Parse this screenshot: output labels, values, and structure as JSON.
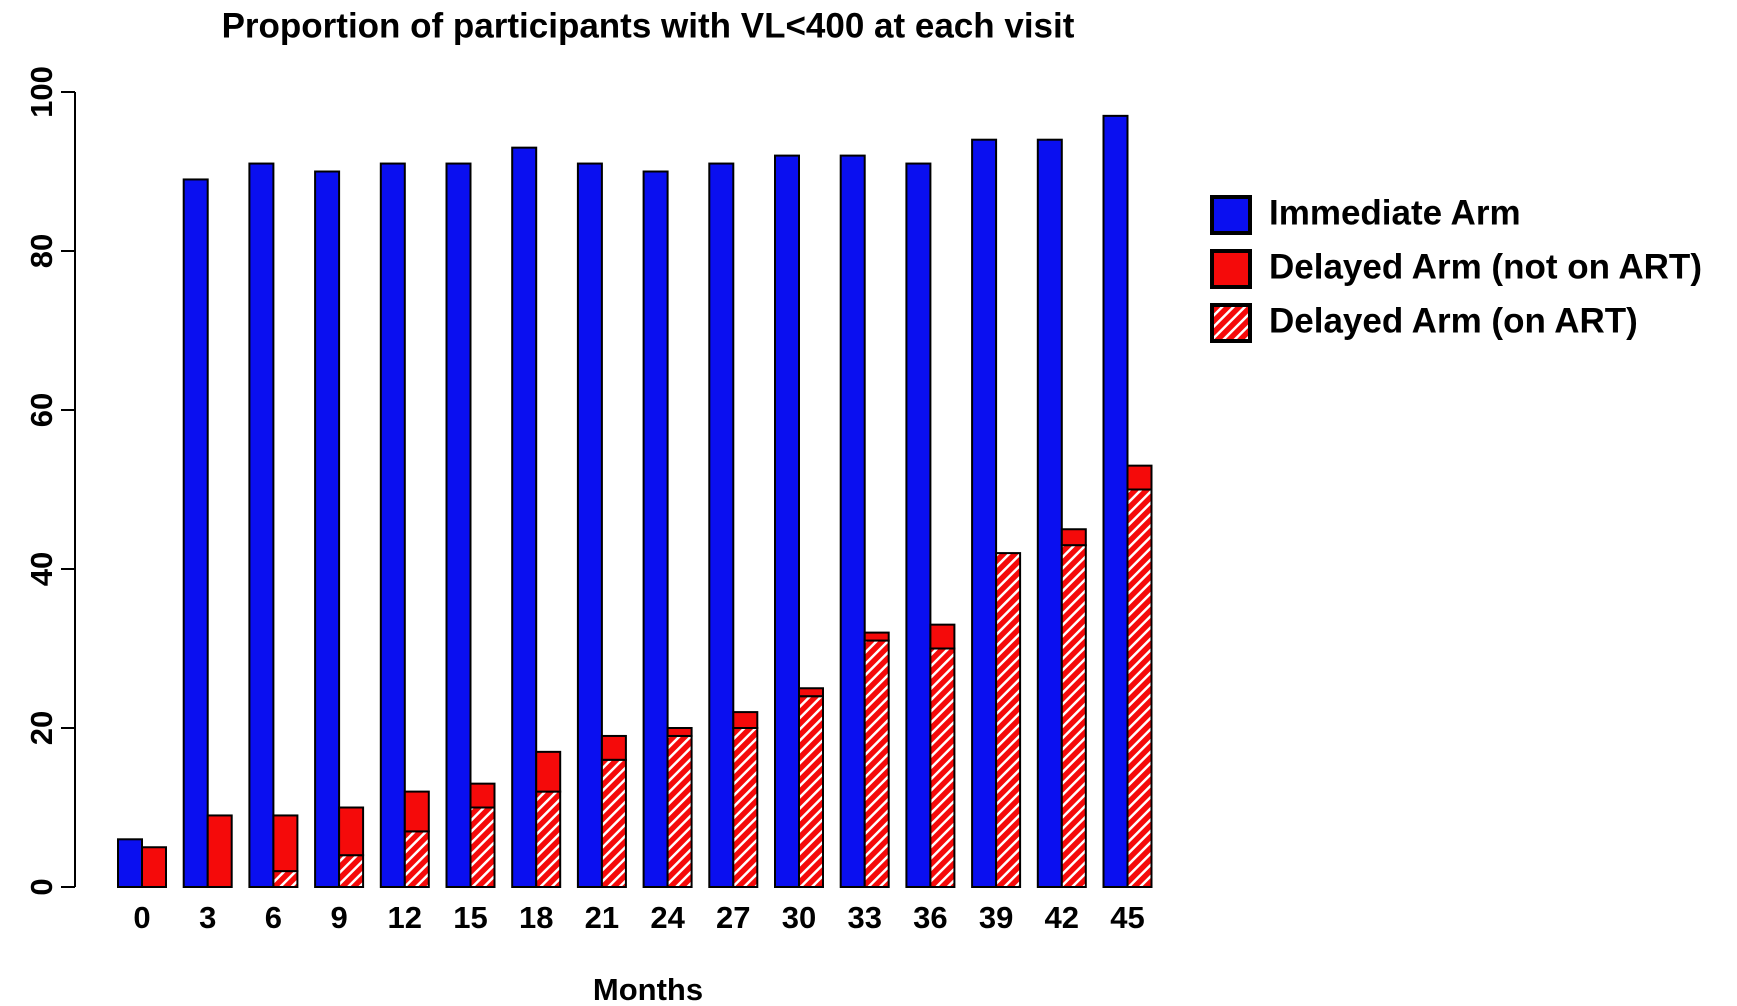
{
  "chart_data": {
    "type": "bar",
    "title": "Proportion of participants with VL<400 at each visit",
    "x_label": "Months",
    "categories": [
      "0",
      "3",
      "6",
      "9",
      "12",
      "15",
      "18",
      "21",
      "24",
      "27",
      "30",
      "33",
      "36",
      "39",
      "42",
      "45"
    ],
    "series": [
      {
        "name": "Immediate Arm",
        "color": "#0a0ff0",
        "values": [
          6,
          89,
          91,
          90,
          91,
          91,
          93,
          91,
          90,
          91,
          92,
          92,
          91,
          94,
          94,
          97
        ]
      },
      {
        "name": "Delayed Arm (not on ART)",
        "color": "#f50a0a",
        "stack": "delayed",
        "values": [
          5,
          9,
          7,
          6,
          5,
          3,
          5,
          3,
          1,
          2,
          1,
          1,
          3,
          0,
          2,
          3
        ]
      },
      {
        "name": "Delayed Arm (on ART)",
        "color": "#f50a0a",
        "stack": "delayed",
        "pattern": "hatch",
        "values": [
          0,
          0,
          2,
          4,
          7,
          10,
          12,
          16,
          19,
          20,
          24,
          31,
          30,
          42,
          43,
          50
        ]
      }
    ],
    "ylim": [
      0,
      100
    ],
    "yticks": [
      0,
      20,
      40,
      60,
      80,
      100
    ],
    "grid": false,
    "legend": "right"
  }
}
